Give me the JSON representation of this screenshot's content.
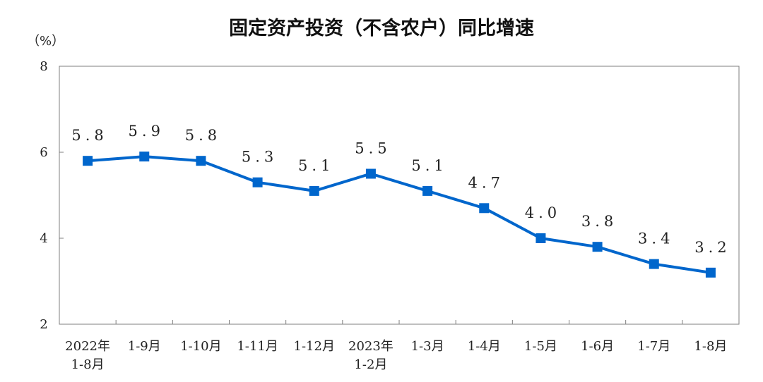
{
  "chart_data": {
    "type": "line",
    "title": "固定资产投资（不含农户）同比增速",
    "y_unit": "（%）",
    "categories": [
      [
        "2022年",
        "1-8月"
      ],
      [
        "1-9月"
      ],
      [
        "1-10月"
      ],
      [
        "1-11月"
      ],
      [
        "1-12月"
      ],
      [
        "2023年",
        "1-2月"
      ],
      [
        "1-3月"
      ],
      [
        "1-4月"
      ],
      [
        "1-5月"
      ],
      [
        "1-6月"
      ],
      [
        "1-7月"
      ],
      [
        "1-8月"
      ]
    ],
    "values": [
      5.8,
      5.9,
      5.8,
      5.3,
      5.1,
      5.5,
      5.1,
      4.7,
      4.0,
      3.8,
      3.4,
      3.2
    ],
    "value_labels": [
      "5.8",
      "5.9",
      "5.8",
      "5.3",
      "5.1",
      "5.5",
      "5.1",
      "4.7",
      "4.0",
      "3.8",
      "3.4",
      "3.2"
    ],
    "ylim": [
      2,
      8
    ],
    "yticks": [
      2,
      4,
      6,
      8
    ],
    "grid": false,
    "legend": "none",
    "line_color": "#0066cc",
    "marker": "square"
  }
}
